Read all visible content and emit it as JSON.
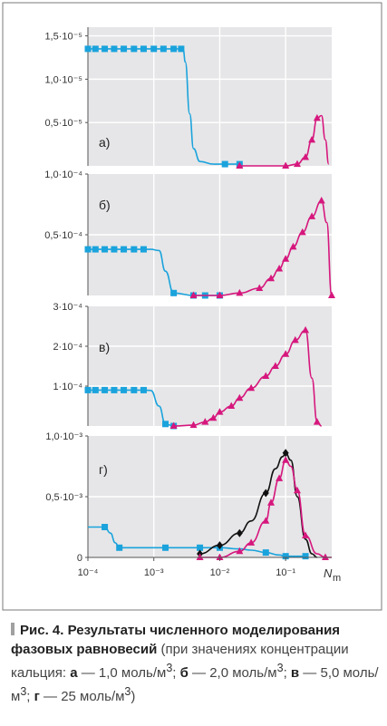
{
  "colors": {
    "panel_bg": "#e6e6e8",
    "frame": "#555555",
    "blue": "#1aa3dc",
    "magenta": "#d6177d",
    "black": "#111111",
    "grid": "#ffffff"
  },
  "caption": {
    "fig": "Рис. 4.",
    "title": "Результаты численного моделирования фазовых равновесий",
    "body_prefix": " (при значениях концентрации кальция: ",
    "a": "а",
    "a_val": " — 1,0 моль/м",
    "b": "б",
    "b_val": " — 2,0 моль/м",
    "c": "в",
    "c_val": " — 5,0 моль/м",
    "d": "г",
    "d_val": " — 25 моль/м",
    "sup": "3",
    "sep": "; ",
    "close": ")"
  },
  "chart_data": [
    {
      "type": "line",
      "panel": "а)",
      "xscale": "log",
      "xlim": [
        0.0001,
        0.5
      ],
      "ylim": [
        0,
        1.6e-05
      ],
      "yticks": [
        {
          "v": 5e-06,
          "label": "0,5·10⁻⁵"
        },
        {
          "v": 1e-05,
          "label": "1,0·10⁻⁵"
        },
        {
          "v": 1.5e-05,
          "label": "1,5·10⁻⁵"
        }
      ],
      "series": [
        {
          "color": "blue",
          "marker": "square",
          "x": [
            0.0001,
            0.00013,
            0.00018,
            0.00025,
            0.00035,
            0.0005,
            0.0007,
            0.001,
            0.0014,
            0.002,
            0.0026,
            0.0028,
            0.003,
            0.0035,
            0.004,
            0.005,
            0.008,
            0.012,
            0.02
          ],
          "y": [
            1.35e-05,
            1.35e-05,
            1.35e-05,
            1.35e-05,
            1.35e-05,
            1.35e-05,
            1.35e-05,
            1.35e-05,
            1.35e-05,
            1.35e-05,
            1.35e-05,
            1.34e-05,
            1.2e-05,
            6e-06,
            2e-06,
            5e-07,
            2e-07,
            2e-07,
            2e-07
          ],
          "marker_idx": [
            0,
            1,
            2,
            3,
            4,
            5,
            6,
            7,
            8,
            9,
            10,
            17,
            18
          ]
        },
        {
          "color": "magenta",
          "marker": "triangle",
          "x": [
            0.02,
            0.1,
            0.15,
            0.2,
            0.25,
            0.3,
            0.35,
            0.4,
            0.45
          ],
          "y": [
            0.0,
            0.0,
            2e-07,
            1e-06,
            3e-06,
            5.5e-06,
            5.8e-06,
            3e-06,
            2e-07
          ],
          "marker_idx": [
            0,
            1,
            2,
            3,
            4,
            5
          ]
        }
      ]
    },
    {
      "type": "line",
      "panel": "б)",
      "xscale": "log",
      "xlim": [
        0.0001,
        0.5
      ],
      "ylim": [
        0,
        0.0001
      ],
      "yticks": [
        {
          "v": 5e-05,
          "label": "0,5·10⁻⁴"
        },
        {
          "v": 0.0001,
          "label": "1,0·10⁻⁴"
        }
      ],
      "series": [
        {
          "color": "blue",
          "marker": "square",
          "x": [
            0.0001,
            0.00013,
            0.00018,
            0.00025,
            0.00035,
            0.0005,
            0.0007,
            0.0009,
            0.0012,
            0.0015,
            0.002,
            0.004,
            0.006,
            0.01
          ],
          "y": [
            3.8e-05,
            3.8e-05,
            3.8e-05,
            3.8e-05,
            3.8e-05,
            3.8e-05,
            3.8e-05,
            3.8e-05,
            3.7e-05,
            2e-05,
            2e-06,
            0.0,
            0.0,
            0.0
          ],
          "marker_idx": [
            0,
            1,
            2,
            3,
            4,
            5,
            6,
            10,
            11,
            12,
            13
          ]
        },
        {
          "color": "magenta",
          "marker": "triangle",
          "x": [
            0.004,
            0.01,
            0.02,
            0.04,
            0.06,
            0.08,
            0.1,
            0.13,
            0.18,
            0.25,
            0.35,
            0.42,
            0.5
          ],
          "y": [
            0.0,
            0.0,
            2e-06,
            6e-06,
            1.4e-05,
            2.2e-05,
            3e-05,
            4e-05,
            5.2e-05,
            6.5e-05,
            7.8e-05,
            6e-05,
            0.0
          ],
          "marker_idx": [
            0,
            1,
            2,
            3,
            4,
            5,
            6,
            7,
            8,
            9,
            10,
            12
          ]
        }
      ]
    },
    {
      "type": "line",
      "panel": "в)",
      "xscale": "log",
      "xlim": [
        0.0001,
        0.5
      ],
      "ylim": [
        0,
        0.0003
      ],
      "yticks": [
        {
          "v": 0.0001,
          "label": "1·10⁻⁴"
        },
        {
          "v": 0.0002,
          "label": "2·10⁻⁴"
        },
        {
          "v": 0.0003,
          "label": "3·10⁻⁴"
        }
      ],
      "series": [
        {
          "color": "blue",
          "marker": "square",
          "x": [
            0.0001,
            0.00013,
            0.00018,
            0.00025,
            0.00035,
            0.0005,
            0.0007,
            0.0009,
            0.0012,
            0.0015,
            0.002
          ],
          "y": [
            9e-05,
            9e-05,
            9e-05,
            9e-05,
            9e-05,
            9e-05,
            9e-05,
            8.9e-05,
            5e-05,
            5e-06,
            0.0
          ],
          "marker_idx": [
            0,
            1,
            2,
            3,
            4,
            5,
            6,
            9,
            10
          ]
        },
        {
          "color": "magenta",
          "marker": "triangle",
          "x": [
            0.002,
            0.004,
            0.006,
            0.008,
            0.01,
            0.015,
            0.02,
            0.03,
            0.05,
            0.07,
            0.1,
            0.14,
            0.2,
            0.25,
            0.3,
            0.35
          ],
          "y": [
            0.0,
            2e-06,
            1e-05,
            2e-05,
            3.5e-05,
            5e-05,
            7e-05,
            9.5e-05,
            0.000125,
            0.00015,
            0.00018,
            0.000215,
            0.00024,
            0.00012,
            1e-05,
            0.0
          ],
          "marker_idx": [
            0,
            1,
            2,
            3,
            4,
            5,
            6,
            7,
            8,
            9,
            10,
            11,
            12,
            14
          ]
        }
      ]
    },
    {
      "type": "line",
      "panel": "г)",
      "xscale": "log",
      "xlim": [
        0.0001,
        0.5
      ],
      "ylim": [
        0,
        0.001
      ],
      "yticks": [
        {
          "v": 0,
          "label": "0"
        },
        {
          "v": 0.0005,
          "label": "0,5·10⁻³"
        },
        {
          "v": 0.001,
          "label": "1,0·10⁻³"
        }
      ],
      "xticks": [
        {
          "v": 0.0001,
          "label": "10⁻⁴"
        },
        {
          "v": 0.001,
          "label": "10⁻³"
        },
        {
          "v": 0.01,
          "label": "10⁻²"
        },
        {
          "v": 0.1,
          "label": "10⁻¹"
        }
      ],
      "xlabel": "N",
      "xlabel_sub": "m",
      "series": [
        {
          "color": "blue",
          "marker": "square",
          "x": [
            0.0001,
            0.00018,
            0.00022,
            0.00026,
            0.0003,
            0.0004,
            0.0006,
            0.0008,
            0.001,
            0.0015,
            0.002,
            0.003,
            0.005,
            0.008,
            0.01,
            0.02,
            0.03,
            0.05,
            0.08,
            0.1,
            0.2
          ],
          "y": [
            0.00025,
            0.00025,
            0.0002,
            0.00012,
            8e-05,
            8e-05,
            8e-05,
            8e-05,
            8e-05,
            8e-05,
            8e-05,
            8e-05,
            8e-05,
            8e-05,
            8e-05,
            7e-05,
            6e-05,
            4e-05,
            2e-05,
            1e-05,
            1e-05
          ],
          "marker_idx": [
            1,
            4,
            9,
            12,
            14,
            17,
            19,
            20
          ]
        },
        {
          "color": "black",
          "marker": "diamond",
          "x": [
            0.005,
            0.01,
            0.02,
            0.03,
            0.05,
            0.07,
            0.09,
            0.1,
            0.12,
            0.15,
            0.2,
            0.25,
            0.3
          ],
          "y": [
            3e-05,
            0.0001,
            0.0002,
            0.0003,
            0.00053,
            0.00073,
            0.00083,
            0.00086,
            0.0008,
            0.0005,
            0.00015,
            3e-05,
            0.0
          ],
          "marker_idx": [
            0,
            1,
            2,
            4,
            7
          ]
        },
        {
          "color": "magenta",
          "marker": "triangle",
          "x": [
            0.005,
            0.01,
            0.02,
            0.03,
            0.05,
            0.06,
            0.08,
            0.1,
            0.12,
            0.15,
            0.2,
            0.3,
            0.4,
            0.5
          ],
          "y": [
            0.0,
            0.0,
            5e-05,
            0.00012,
            0.0003,
            0.00045,
            0.00065,
            0.0008,
            0.00075,
            0.00055,
            0.00018,
            3e-05,
            0.0,
            0.0
          ],
          "marker_idx": [
            0,
            1,
            2,
            3,
            4,
            5,
            6,
            7,
            9,
            10,
            12
          ]
        }
      ]
    }
  ]
}
